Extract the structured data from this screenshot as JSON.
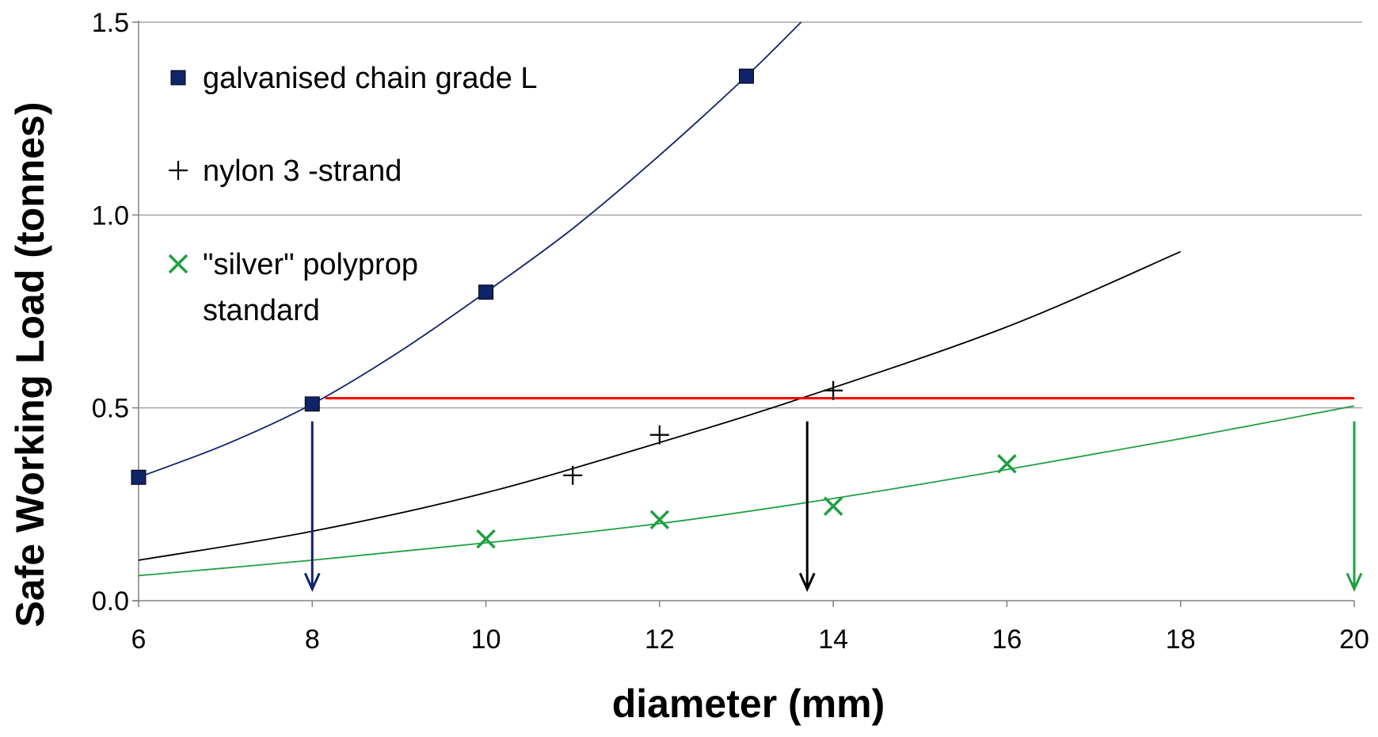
{
  "chart_data": {
    "type": "scatter",
    "xlabel": "diameter (mm)",
    "ylabel": "Safe Working Load (tonnes)",
    "xlim": [
      6,
      20
    ],
    "ylim": [
      0,
      1.5
    ],
    "xticks": [
      6,
      8,
      10,
      12,
      14,
      16,
      18,
      20
    ],
    "yticks": [
      "0.0",
      "0.5",
      "1.0",
      "1.5"
    ],
    "grid": "horizontal",
    "legend_position": "top-left",
    "series": [
      {
        "name": "galvanised chain grade L",
        "marker": "square",
        "color": "#10246a",
        "x": [
          6,
          8,
          10,
          13
        ],
        "y": [
          0.32,
          0.51,
          0.8,
          1.36
        ],
        "trend": {
          "x": [
            6,
            7,
            8,
            9,
            10,
            11,
            12,
            13,
            13.63
          ],
          "y": [
            0.32,
            0.405,
            0.51,
            0.645,
            0.8,
            0.965,
            1.155,
            1.36,
            1.5
          ]
        }
      },
      {
        "name": "nylon 3 -strand",
        "marker": "plus",
        "color": "#000000",
        "x": [
          11,
          12,
          14
        ],
        "y": [
          0.325,
          0.43,
          0.545
        ],
        "trend": {
          "x": [
            6,
            8,
            10,
            12,
            13.7,
            16,
            18
          ],
          "y": [
            0.105,
            0.18,
            0.28,
            0.41,
            0.53,
            0.71,
            0.905
          ]
        }
      },
      {
        "name": "\"silver\" polyprop standard",
        "marker": "x",
        "color": "#1ea040",
        "x": [
          10,
          12,
          14,
          16
        ],
        "y": [
          0.16,
          0.21,
          0.245,
          0.355
        ],
        "trend": {
          "x": [
            6,
            8,
            10,
            12,
            14,
            16,
            18,
            20
          ],
          "y": [
            0.065,
            0.105,
            0.15,
            0.2,
            0.265,
            0.34,
            0.42,
            0.505
          ]
        }
      }
    ],
    "reference_line": {
      "color": "#ff0000",
      "y": 0.525,
      "x_start": 8.15,
      "x_end": 20
    },
    "arrows": [
      {
        "x": 8,
        "y_from": 0.465,
        "y_to": 0.03,
        "color": "#10246a"
      },
      {
        "x": 13.7,
        "y_from": 0.465,
        "y_to": 0.03,
        "color": "#000000"
      },
      {
        "x": 20,
        "y_from": 0.465,
        "y_to": 0.03,
        "color": "#1ea040"
      }
    ]
  }
}
